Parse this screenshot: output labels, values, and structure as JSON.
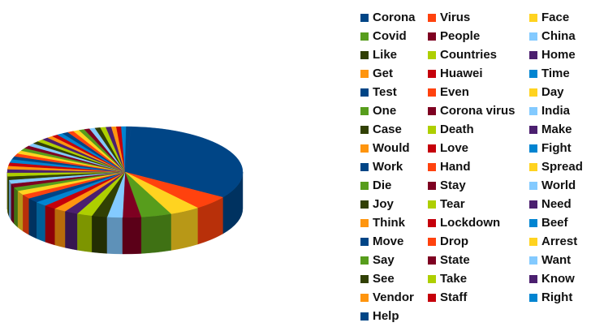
{
  "chart_data": {
    "type": "pie",
    "style": "3d",
    "legend_position": "right",
    "categories": [
      "Corona",
      "Virus",
      "Face",
      "Covid",
      "People",
      "China",
      "Like",
      "Countries",
      "Home",
      "Get",
      "Huawei",
      "Time",
      "Test",
      "Even",
      "Day",
      "One",
      "Corona virus",
      "India",
      "Case",
      "Death",
      "Make",
      "Would",
      "Love",
      "Fight",
      "Work",
      "Hand",
      "Spread",
      "Die",
      "Stay",
      "World",
      "Joy",
      "Tear",
      "Need",
      "Think",
      "Lockdown",
      "Beef",
      "Move",
      "Drop",
      "Arrest",
      "Say",
      "State",
      "Want",
      "See",
      "Take",
      "Know",
      "Vendor",
      "Staff",
      "Right",
      "Help"
    ],
    "values": [
      40,
      6,
      5,
      5,
      3,
      2.5,
      2.5,
      2.5,
      2.2,
      2,
      2,
      2,
      2,
      1.8,
      1.8,
      1.6,
      1.6,
      1.6,
      1.5,
      1.5,
      1.5,
      1.4,
      1.4,
      1.4,
      1.3,
      1.3,
      1.3,
      1.2,
      1.2,
      1.2,
      1.1,
      1.1,
      1.1,
      1,
      1,
      1,
      1,
      1,
      1,
      0.9,
      0.9,
      0.9,
      0.9,
      0.9,
      0.9,
      0.8,
      0.8,
      0.8,
      0.8
    ],
    "colors": [
      "#004586",
      "#ff420e",
      "#ffd320",
      "#579d1c",
      "#7e0021",
      "#83caff",
      "#314004",
      "#aecf00",
      "#4b1f6f",
      "#ff950e",
      "#c5000b",
      "#0084d1"
    ]
  }
}
